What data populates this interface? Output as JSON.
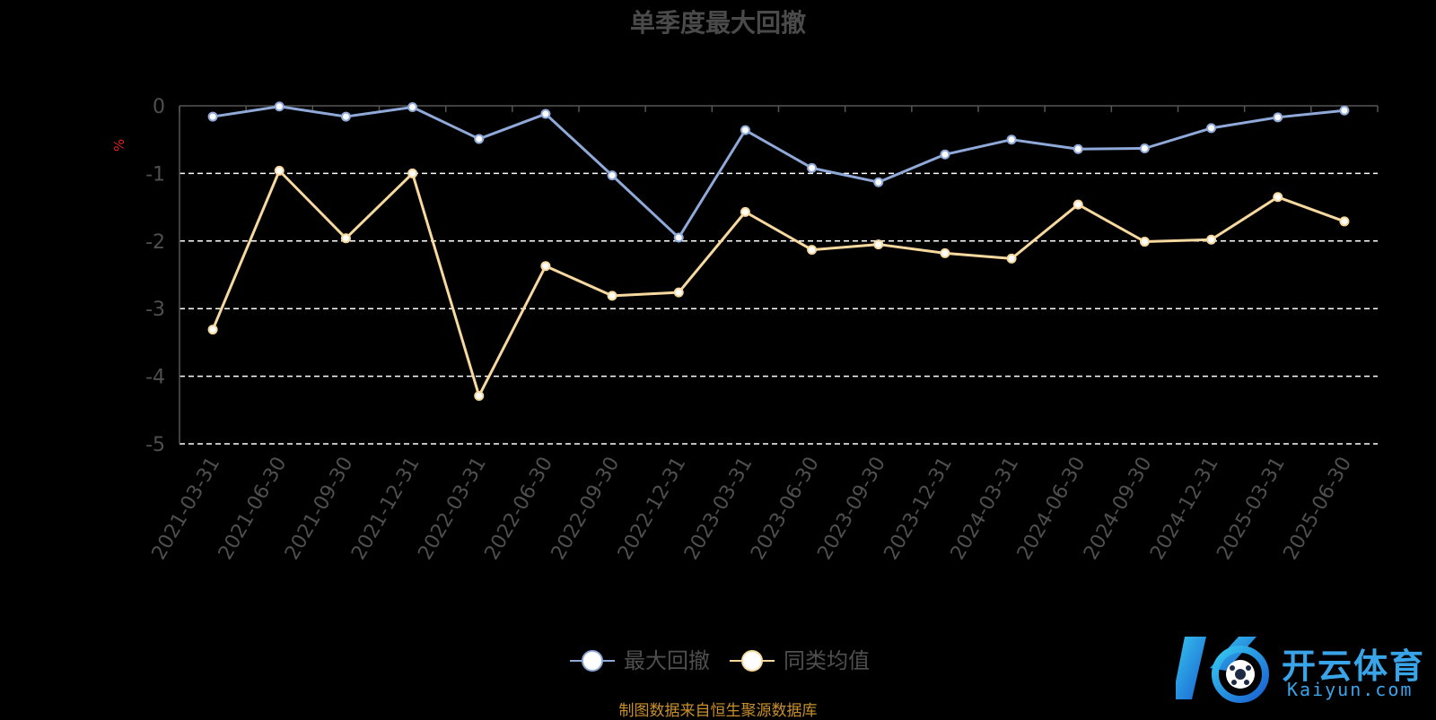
{
  "chart_data": {
    "type": "line",
    "title": "单季度最大回撤",
    "ylabel": "%",
    "ylim": [
      -5,
      0
    ],
    "yticks": [
      0,
      -1,
      -2,
      -3,
      -4,
      -5
    ],
    "grid": true,
    "legend_position": "bottom-center",
    "categories": [
      "2021-03-31",
      "2021-06-30",
      "2021-09-30",
      "2021-12-31",
      "2022-03-31",
      "2022-06-30",
      "2022-09-30",
      "2022-12-31",
      "2023-03-31",
      "2023-06-30",
      "2023-09-30",
      "2023-12-31",
      "2024-03-31",
      "2024-06-30",
      "2024-09-30",
      "2024-12-31",
      "2025-03-31",
      "2025-06-30"
    ],
    "series": [
      {
        "name": "最大回撤",
        "color": "#8fa9d8",
        "values": [
          -0.16,
          -0.01,
          -0.16,
          -0.02,
          -0.49,
          -0.12,
          -1.03,
          -1.95,
          -0.36,
          -0.92,
          -1.13,
          -0.72,
          -0.5,
          -0.64,
          -0.63,
          -0.33,
          -0.17,
          -0.07
        ]
      },
      {
        "name": "同类均值",
        "color": "#f7d9a0",
        "values": [
          -3.31,
          -0.96,
          -1.96,
          -1.0,
          -4.29,
          -2.37,
          -2.81,
          -2.76,
          -1.57,
          -2.13,
          -2.05,
          -2.18,
          -2.26,
          -1.46,
          -2.01,
          -1.98,
          -1.35,
          -1.71
        ]
      }
    ]
  },
  "source_note": "制图数据来自恒生聚源数据库",
  "logo": {
    "cn": "开云体育",
    "en": "Kaiyun.com"
  }
}
